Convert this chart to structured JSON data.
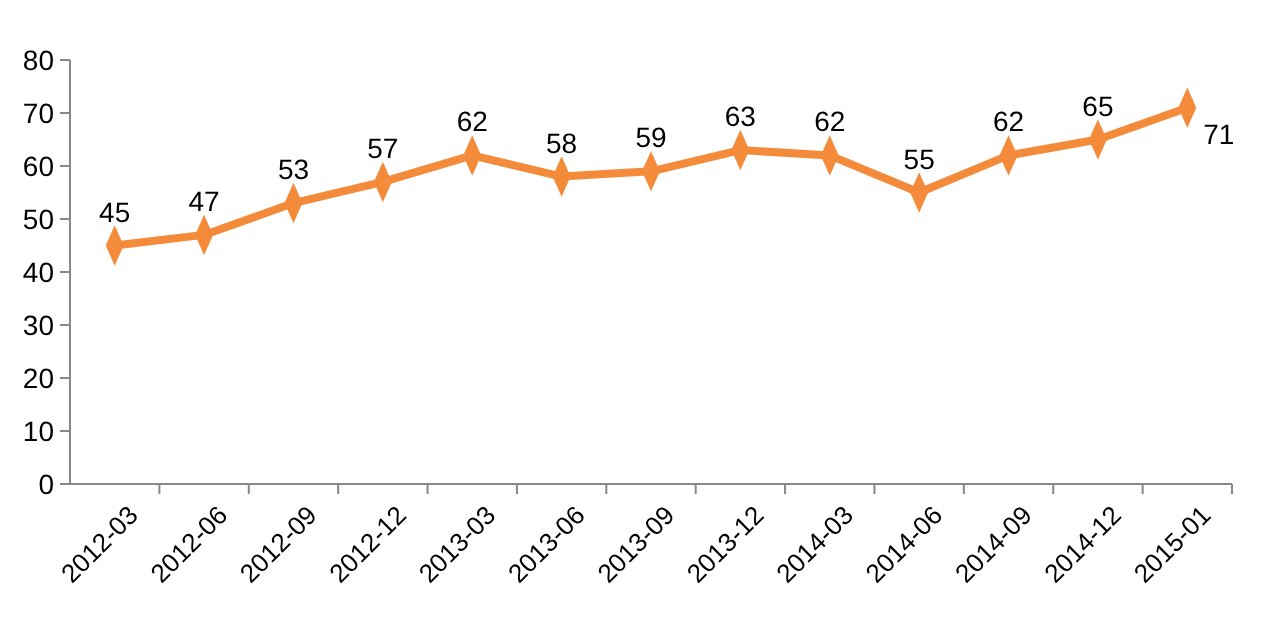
{
  "chart_data": {
    "type": "line",
    "categories": [
      "2012-03",
      "2012-06",
      "2012-09",
      "2012-12",
      "2013-03",
      "2013-06",
      "2013-09",
      "2013-12",
      "2014-03",
      "2014-06",
      "2014-09",
      "2014-12",
      "2015-01"
    ],
    "series": [
      {
        "color": "#f38b3a",
        "values": [
          45,
          47,
          53,
          57,
          62,
          58,
          59,
          63,
          62,
          55,
          62,
          65,
          71
        ]
      }
    ],
    "ylim": [
      0,
      80
    ],
    "yticks": [
      0,
      10,
      20,
      30,
      40,
      50,
      60,
      70,
      80
    ],
    "marker": "diamond",
    "data_labels": true
  }
}
